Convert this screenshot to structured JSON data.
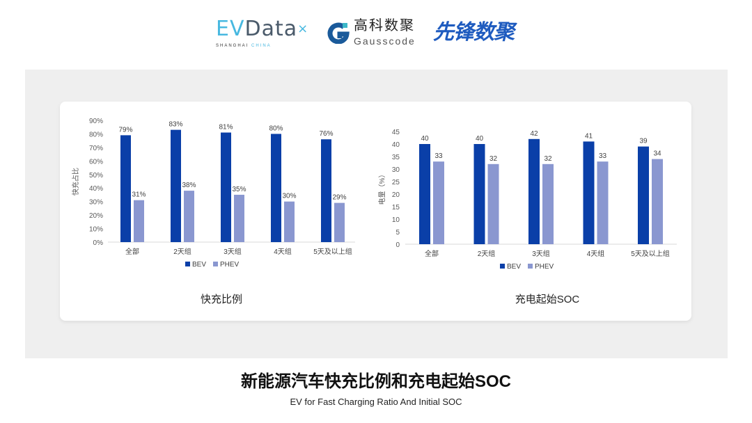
{
  "logos": {
    "evdata": {
      "name": "EVData",
      "tagline_a": "SHANGHAI",
      "tagline_b": "CHINA"
    },
    "gausscode": {
      "cn": "高科数聚",
      "en": "Gausscode"
    },
    "xianfeng": {
      "cn": "先锋数聚"
    }
  },
  "colors": {
    "bev": "#0a3fa8",
    "phev": "#8a97d0",
    "panel": "#efefef"
  },
  "chart_data": [
    {
      "type": "bar",
      "title": "快充比例",
      "ylabel": "快充占比",
      "categories": [
        "全部",
        "2天组",
        "3天组",
        "4天组",
        "5天及以上组"
      ],
      "series": [
        {
          "name": "BEV",
          "values": [
            79,
            83,
            81,
            80,
            76
          ],
          "labels": [
            "79%",
            "83%",
            "81%",
            "80%",
            "76%"
          ]
        },
        {
          "name": "PHEV",
          "values": [
            31,
            38,
            35,
            30,
            29
          ],
          "labels": [
            "31%",
            "38%",
            "35%",
            "30%",
            "29%"
          ]
        }
      ],
      "ylim": [
        0,
        90
      ],
      "yticks": [
        "0%",
        "10%",
        "20%",
        "30%",
        "40%",
        "50%",
        "60%",
        "70%",
        "80%",
        "90%"
      ],
      "grid": false,
      "legend": "bottom"
    },
    {
      "type": "bar",
      "title": "充电起始SOC",
      "ylabel": "电量（%）",
      "categories": [
        "全部",
        "2天组",
        "3天组",
        "4天组",
        "5天及以上组"
      ],
      "series": [
        {
          "name": "BEV",
          "values": [
            40,
            40,
            42,
            41,
            39
          ],
          "labels": [
            "40",
            "40",
            "42",
            "41",
            "39"
          ]
        },
        {
          "name": "PHEV",
          "values": [
            33,
            32,
            32,
            33,
            34
          ],
          "labels": [
            "33",
            "32",
            "32",
            "33",
            "34"
          ]
        }
      ],
      "ylim": [
        0,
        45
      ],
      "yticks": [
        "0",
        "5",
        "10",
        "15",
        "20",
        "25",
        "30",
        "35",
        "40",
        "45"
      ],
      "grid": false,
      "legend": "bottom"
    }
  ],
  "footer": {
    "title": "新能源汽车快充比例和充电起始SOC",
    "subtitle": "EV for Fast Charging Ratio And Initial SOC"
  }
}
